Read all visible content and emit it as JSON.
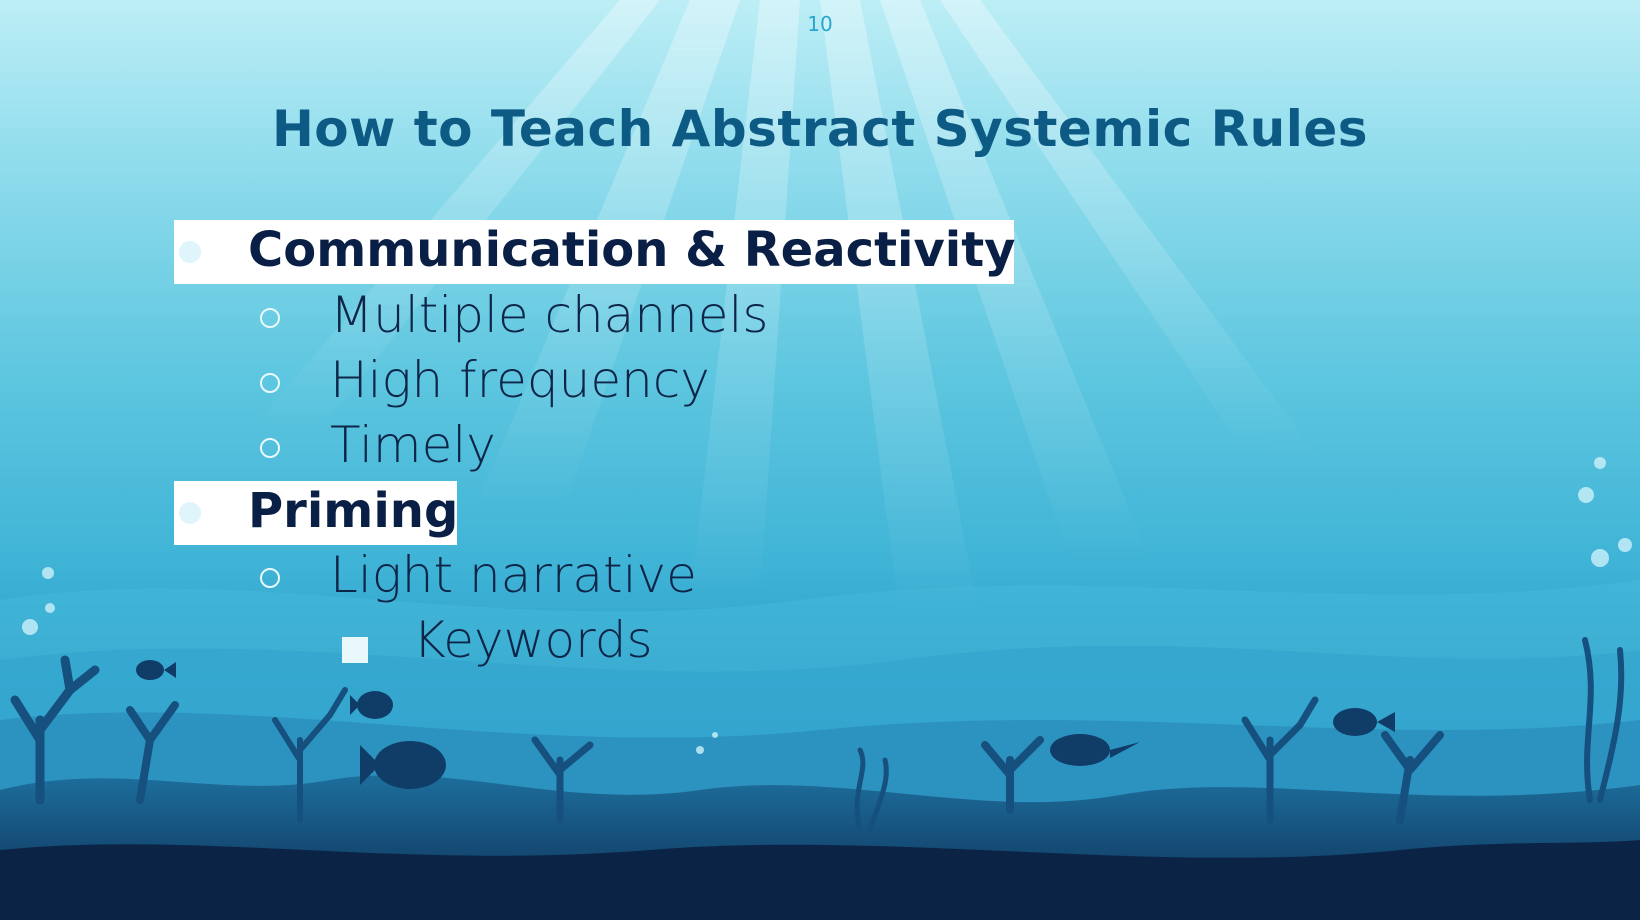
{
  "slide": {
    "number": "10",
    "title": "How to Teach Abstract Systemic Rules"
  },
  "bullets": [
    {
      "level": 1,
      "text": "Communication & Reactivity",
      "highlighted": true
    },
    {
      "level": 2,
      "text": "Multiple channels"
    },
    {
      "level": 2,
      "text": "High frequency"
    },
    {
      "level": 2,
      "text": "Timely"
    },
    {
      "level": 1,
      "text": "Priming",
      "highlighted": true
    },
    {
      "level": 2,
      "text": "Light narrative"
    },
    {
      "level": 3,
      "text": "Keywords"
    }
  ],
  "colors": {
    "title": "#0d5a84",
    "bullet_text": "#0a1f45",
    "highlight": "#ffffff",
    "slide_number": "#27a6cf"
  }
}
